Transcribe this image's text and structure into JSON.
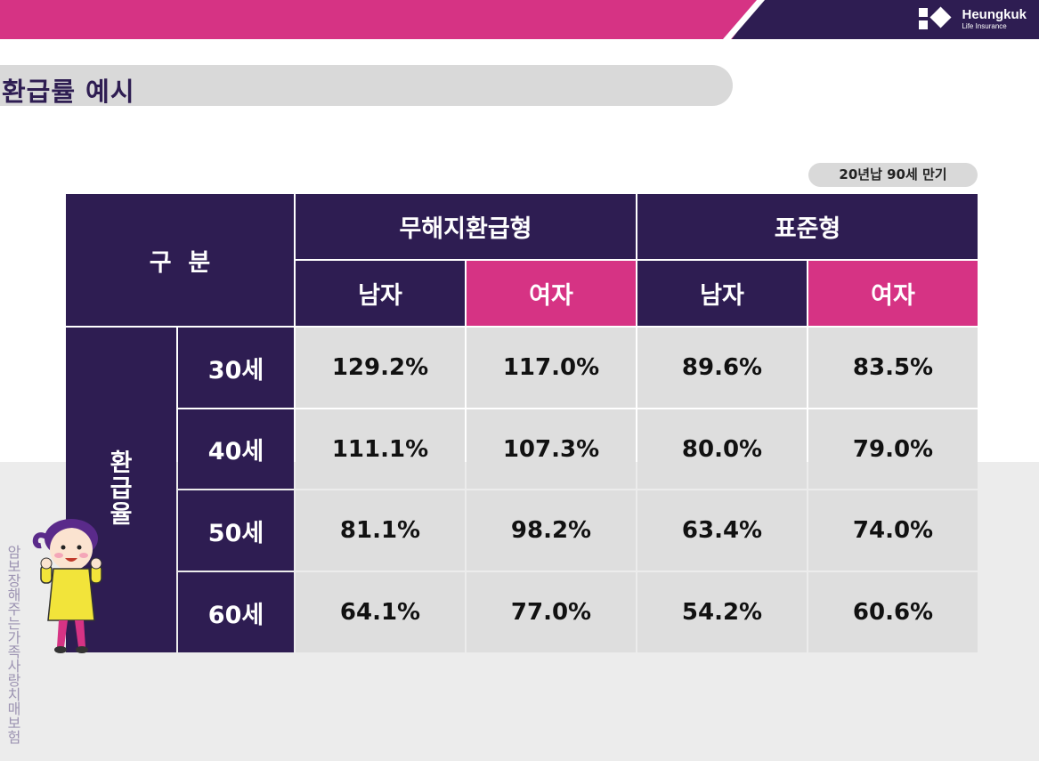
{
  "header": {
    "brand_name": "Heungkuk",
    "brand_sub": "Life Insurance"
  },
  "title": "환급률 예시",
  "badge": "20년납 90세 만기",
  "side_slogan": "암보장해주는가족사랑치매보험",
  "table": {
    "corner": "구  분",
    "groups": [
      "무해지환급형",
      "표준형"
    ],
    "genders": [
      "남자",
      "여자",
      "남자",
      "여자"
    ],
    "row_group_label": [
      "환",
      "급",
      "율"
    ],
    "rows": [
      {
        "age": "30세",
        "values": [
          "129.2%",
          "117.0%",
          "89.6%",
          "83.5%"
        ]
      },
      {
        "age": "40세",
        "values": [
          "111.1%",
          "107.3%",
          "80.0%",
          "79.0%"
        ]
      },
      {
        "age": "50세",
        "values": [
          "81.1%",
          "98.2%",
          "63.4%",
          "74.0%"
        ]
      },
      {
        "age": "60세",
        "values": [
          "64.1%",
          "77.0%",
          "54.2%",
          "60.6%"
        ]
      }
    ]
  },
  "colors": {
    "purple": "#2e1d52",
    "pink": "#d63384",
    "cell_gray": "#dedede",
    "character_yellow": "#f2e43a"
  }
}
